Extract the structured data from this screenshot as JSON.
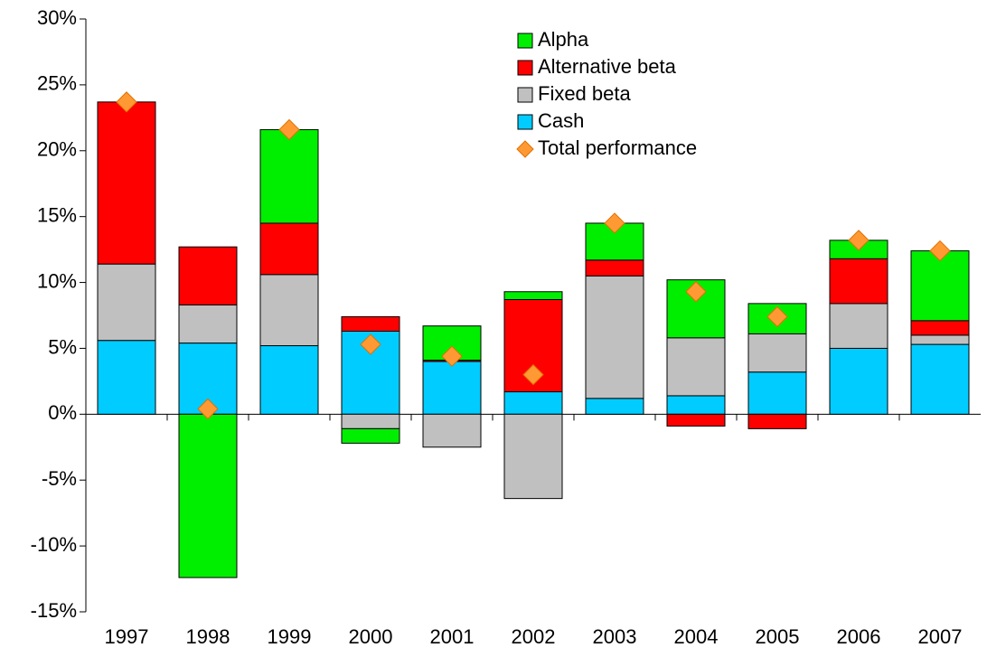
{
  "chart_data": {
    "type": "bar",
    "stacked": true,
    "categories": [
      "1997",
      "1998",
      "1999",
      "2000",
      "2001",
      "2002",
      "2003",
      "2004",
      "2005",
      "2006",
      "2007"
    ],
    "series": [
      {
        "name": "Alpha",
        "color": "#00ee00",
        "values": [
          0,
          -12.4,
          7.1,
          -1.1,
          2.6,
          0.6,
          2.8,
          4.4,
          2.3,
          1.4,
          5.3
        ]
      },
      {
        "name": "Alternative beta",
        "color": "#ff0000",
        "values": [
          12.3,
          4.4,
          3.9,
          1.1,
          0.1,
          7.0,
          1.2,
          -0.9,
          -1.1,
          3.4,
          1.1
        ]
      },
      {
        "name": "Fixed beta",
        "color": "#c0c0c0",
        "values": [
          5.8,
          2.9,
          5.4,
          -1.1,
          -2.5,
          -6.4,
          9.3,
          4.4,
          2.9,
          3.4,
          0.7
        ]
      },
      {
        "name": "Cash",
        "color": "#00ccff",
        "values": [
          5.6,
          5.4,
          5.2,
          6.3,
          4.0,
          1.7,
          1.2,
          1.4,
          3.2,
          5.0,
          5.3
        ]
      }
    ],
    "total": {
      "name": "Total performance",
      "color": "#ff9933",
      "values": [
        23.7,
        0.4,
        21.6,
        5.3,
        4.4,
        3.0,
        14.5,
        9.3,
        7.4,
        13.2,
        12.4
      ]
    },
    "ylim": [
      -15,
      30
    ],
    "yticks": [
      {
        "value": -15,
        "label": "-15%"
      },
      {
        "value": -10,
        "label": "-10%"
      },
      {
        "value": -5,
        "label": "-5%"
      },
      {
        "value": 0,
        "label": "0%"
      },
      {
        "value": 5,
        "label": "5%"
      },
      {
        "value": 10,
        "label": "10%"
      },
      {
        "value": 15,
        "label": "15%"
      },
      {
        "value": 20,
        "label": "20%"
      },
      {
        "value": 25,
        "label": "25%"
      },
      {
        "value": 30,
        "label": "30%"
      }
    ],
    "grid": false,
    "legend": "top-right"
  }
}
